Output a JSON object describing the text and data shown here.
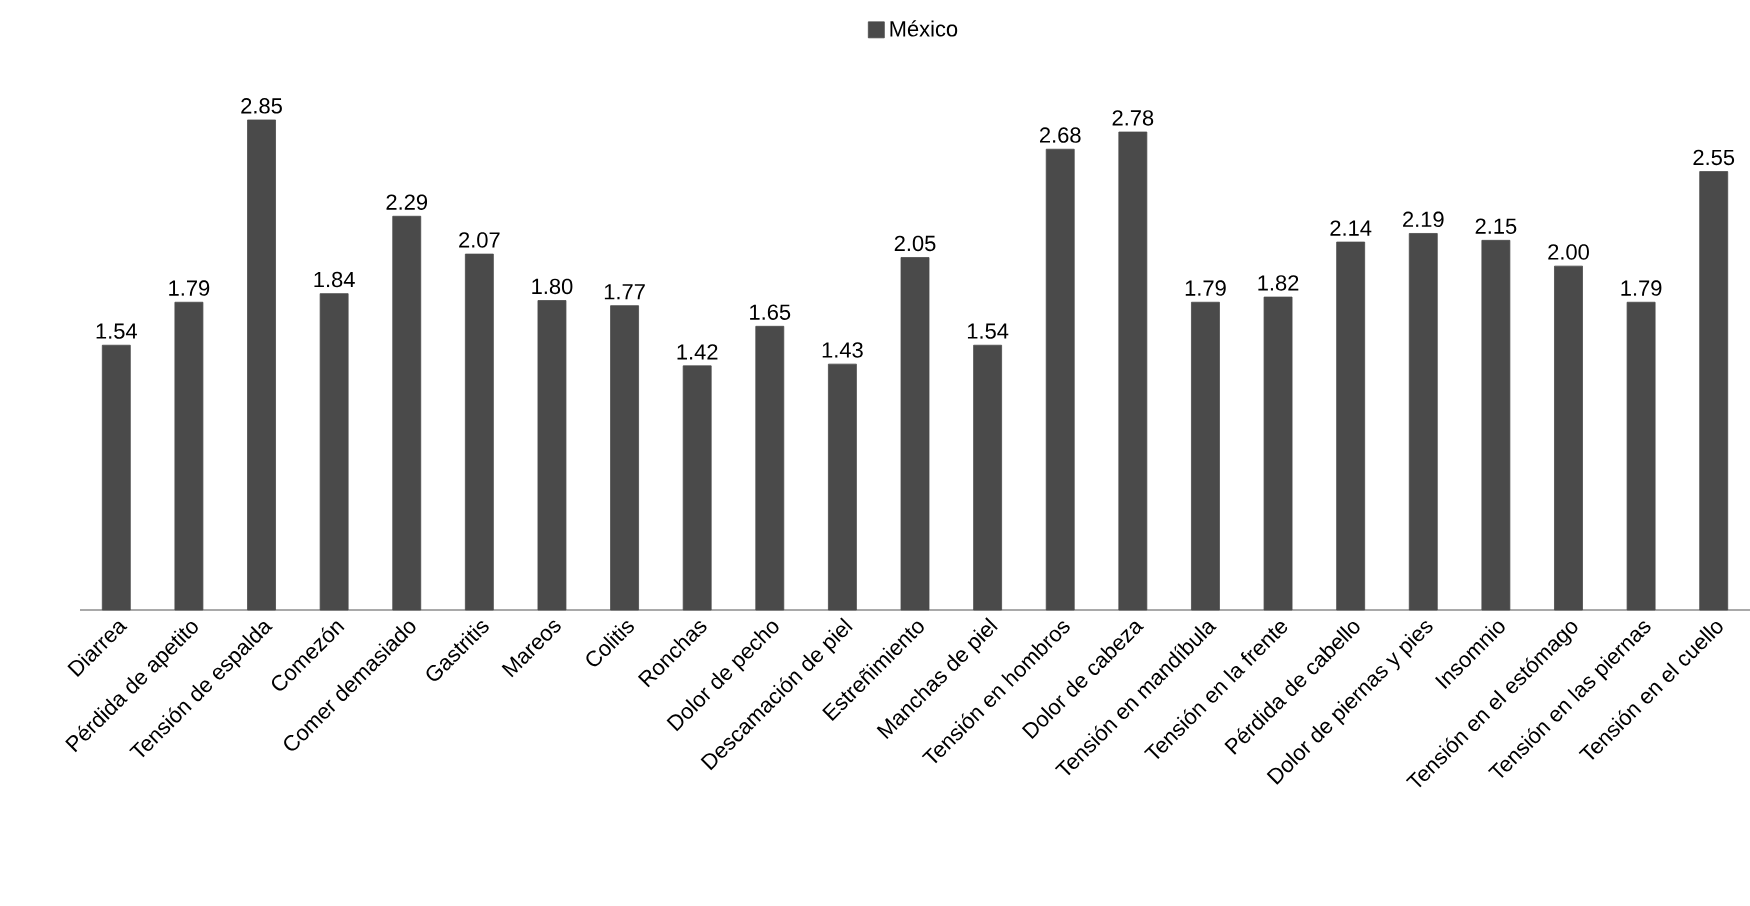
{
  "chart_data": {
    "type": "bar",
    "categories": [
      "Diarrea",
      "Pérdida de apetito",
      "Tensión de espalda",
      "Comezón",
      "Comer demasiado",
      "Gastritis",
      "Mareos",
      "Colitis",
      "Ronchas",
      "Dolor de pecho",
      "Descamación de piel",
      "Estreñimiento",
      "Manchas de piel",
      "Tensión en hombros",
      "Dolor de cabeza",
      "Tensión en mandíbula",
      "Tensión en la frente",
      "Pérdida de cabello",
      "Dolor de piernas y pies",
      "Insomnio",
      "Tensión en el estómago",
      "Tensión en las piernas",
      "Tensión en el cuello"
    ],
    "series": [
      {
        "name": "México",
        "color": "#4a4a4a",
        "values": [
          1.54,
          1.79,
          2.85,
          1.84,
          2.29,
          2.07,
          1.8,
          1.77,
          1.42,
          1.65,
          1.43,
          2.05,
          1.54,
          2.68,
          2.78,
          1.79,
          1.82,
          2.14,
          2.19,
          2.15,
          2.0,
          1.79,
          2.55
        ],
        "value_labels": [
          "1.54",
          "1.79",
          "2.85",
          "1.84",
          "2.29",
          "2.07",
          "1.80",
          "1.77",
          "1.42",
          "1.65",
          "1.43",
          "2.05",
          "1.54",
          "2.68",
          "2.78",
          "1.79",
          "1.82",
          "2.14",
          "2.19",
          "2.15",
          "2.00",
          "1.79",
          "2.55"
        ]
      }
    ],
    "tick_labels": "x",
    "legend": "top",
    "grid": false
  }
}
